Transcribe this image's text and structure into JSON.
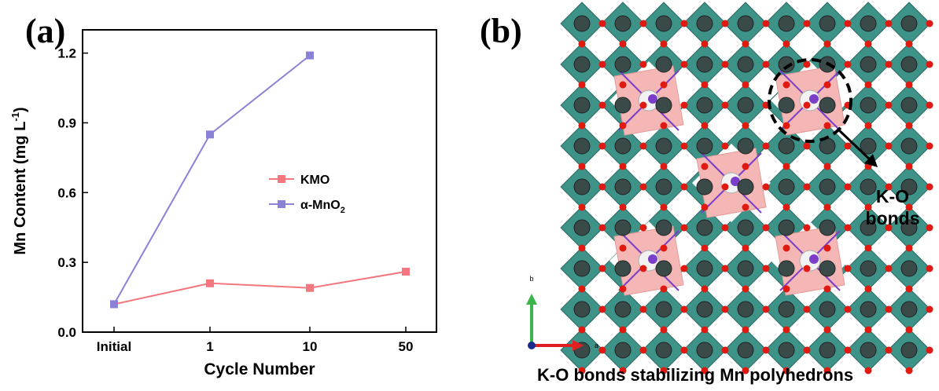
{
  "panels": {
    "a_label": "(a)",
    "b_label": "(b)"
  },
  "chart_data": {
    "type": "line",
    "categories": [
      "Initial",
      "1",
      "10",
      "50"
    ],
    "xlabel": "Cycle Number",
    "ylabel_main": "Mn Content (mg L",
    "ylabel_sup": "-1",
    "ylabel_end": ")",
    "ylim": [
      0.0,
      1.3
    ],
    "yticks": [
      "0.0",
      "0.3",
      "0.6",
      "0.9",
      "1.2"
    ],
    "legend_position": "right-middle",
    "grid": false,
    "series": [
      {
        "name": "KMO",
        "name_sub": "",
        "color": "#f4777f",
        "values": [
          0.12,
          0.21,
          0.19,
          0.26
        ]
      },
      {
        "name": "α-MnO",
        "name_sub": "2",
        "color": "#8a82d6",
        "values": [
          0.12,
          0.85,
          1.19,
          null
        ]
      }
    ]
  },
  "crystal": {
    "caption": "K-O bonds stabilizing Mn polyhedrons",
    "callout_line1": "K-O",
    "callout_line2": "bonds",
    "axis_b": "b",
    "axis_a": "a",
    "colors": {
      "octahedron": "#2e8a80",
      "tunnel": "#f4b7b5",
      "oxygen": "#e01a10",
      "potassium": "#7a3ec9"
    }
  }
}
